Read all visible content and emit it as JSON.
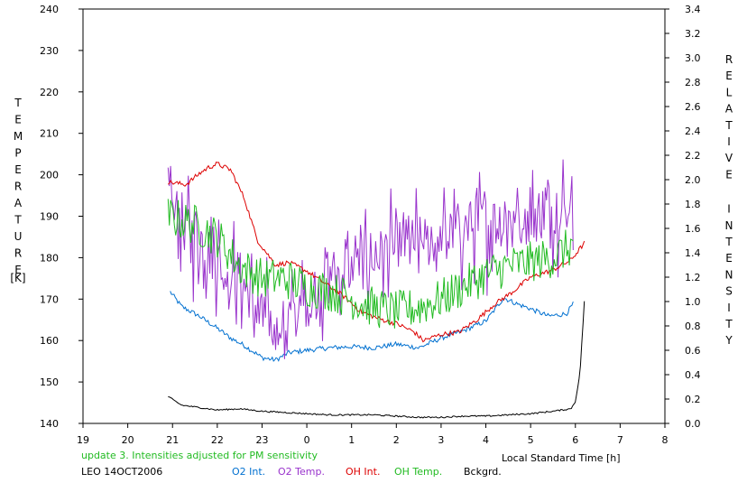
{
  "chart_data": {
    "type": "line",
    "left_axis": {
      "title": "TEMPERATURE",
      "unit": "[K]",
      "ticks": [
        140,
        150,
        160,
        170,
        180,
        190,
        200,
        210,
        220,
        230,
        240
      ],
      "range": [
        140,
        240
      ]
    },
    "right_axis": {
      "title": "RELATIVE INTENSITY",
      "ticks": [
        "0.0",
        "0.2",
        "0.4",
        "0.6",
        "0.8",
        "1.0",
        "1.2",
        "1.4",
        "1.6",
        "1.8",
        "2.0",
        "2.2",
        "2.4",
        "2.6",
        "2.8",
        "3.0",
        "3.2",
        "3.4"
      ],
      "range": [
        0,
        3.4
      ]
    },
    "x_axis": {
      "label": "Local Standard Time [h]",
      "ticks": [
        "19",
        "20",
        "21",
        "22",
        "23",
        "0",
        "1",
        "2",
        "3",
        "4",
        "5",
        "6",
        "7",
        "8"
      ],
      "range_hours": [
        19,
        32
      ]
    },
    "note": "update 3. Intensities adjusted for PM sensitivity",
    "station": "LEO 14OCT2006",
    "series": [
      {
        "name": "O2 Int.",
        "axis": "right",
        "color": "#0070d0",
        "noise": 0.02,
        "points": [
          [
            20.95,
            1.08
          ],
          [
            21.2,
            0.96
          ],
          [
            21.6,
            0.88
          ],
          [
            22.0,
            0.78
          ],
          [
            22.3,
            0.7
          ],
          [
            22.6,
            0.64
          ],
          [
            23.0,
            0.54
          ],
          [
            23.3,
            0.52
          ],
          [
            23.6,
            0.58
          ],
          [
            24.0,
            0.6
          ],
          [
            24.5,
            0.62
          ],
          [
            25.0,
            0.63
          ],
          [
            25.5,
            0.62
          ],
          [
            26.0,
            0.65
          ],
          [
            26.5,
            0.62
          ],
          [
            27.0,
            0.7
          ],
          [
            27.5,
            0.76
          ],
          [
            28.0,
            0.84
          ],
          [
            28.4,
            1.03
          ],
          [
            28.7,
            0.98
          ],
          [
            29.0,
            0.94
          ],
          [
            29.4,
            0.88
          ],
          [
            29.8,
            0.9
          ],
          [
            29.95,
            0.98
          ]
        ]
      },
      {
        "name": "O2 Temp.",
        "axis": "left",
        "color": "#9933cc",
        "noise": 7,
        "points": [
          [
            20.9,
            193
          ],
          [
            21.5,
            185
          ],
          [
            22.0,
            180
          ],
          [
            22.5,
            175
          ],
          [
            23.0,
            165
          ],
          [
            23.5,
            163
          ],
          [
            24.0,
            170
          ],
          [
            24.5,
            175
          ],
          [
            25.0,
            178
          ],
          [
            25.5,
            180
          ],
          [
            26.0,
            182
          ],
          [
            26.5,
            183
          ],
          [
            27.0,
            185
          ],
          [
            27.5,
            187
          ],
          [
            28.0,
            188
          ],
          [
            28.5,
            190
          ],
          [
            29.0,
            190
          ],
          [
            29.5,
            192
          ],
          [
            29.95,
            194
          ]
        ]
      },
      {
        "name": "OH Int.",
        "axis": "right",
        "color": "#dd0000",
        "noise": 0.02,
        "points": [
          [
            20.9,
            1.98
          ],
          [
            21.3,
            1.96
          ],
          [
            21.6,
            2.05
          ],
          [
            21.8,
            2.1
          ],
          [
            22.0,
            2.13
          ],
          [
            22.3,
            2.08
          ],
          [
            22.6,
            1.85
          ],
          [
            22.9,
            1.5
          ],
          [
            23.3,
            1.3
          ],
          [
            23.6,
            1.32
          ],
          [
            24.0,
            1.25
          ],
          [
            24.4,
            1.15
          ],
          [
            24.8,
            1.05
          ],
          [
            25.2,
            0.92
          ],
          [
            25.6,
            0.86
          ],
          [
            26.0,
            0.82
          ],
          [
            26.4,
            0.75
          ],
          [
            26.6,
            0.68
          ],
          [
            27.0,
            0.73
          ],
          [
            27.4,
            0.75
          ],
          [
            27.8,
            0.85
          ],
          [
            28.2,
            0.98
          ],
          [
            28.6,
            1.08
          ],
          [
            29.0,
            1.2
          ],
          [
            29.5,
            1.26
          ],
          [
            29.9,
            1.34
          ],
          [
            30.2,
            1.48
          ]
        ]
      },
      {
        "name": "OH Temp.",
        "axis": "left",
        "color": "#22bb22",
        "noise": 5,
        "points": [
          [
            20.9,
            190
          ],
          [
            21.5,
            188
          ],
          [
            22.0,
            185
          ],
          [
            22.5,
            178
          ],
          [
            23.0,
            175
          ],
          [
            23.5,
            175
          ],
          [
            24.0,
            173
          ],
          [
            24.5,
            172
          ],
          [
            25.0,
            170
          ],
          [
            25.5,
            168
          ],
          [
            26.0,
            167
          ],
          [
            26.5,
            168
          ],
          [
            27.0,
            170
          ],
          [
            27.5,
            173
          ],
          [
            28.0,
            176
          ],
          [
            28.5,
            178
          ],
          [
            29.0,
            179
          ],
          [
            29.5,
            180
          ],
          [
            29.95,
            183
          ]
        ]
      },
      {
        "name": "Bckgrd.",
        "axis": "right",
        "color": "#000000",
        "noise": 0.006,
        "points": [
          [
            20.9,
            0.22
          ],
          [
            21.2,
            0.15
          ],
          [
            21.6,
            0.13
          ],
          [
            22.0,
            0.11
          ],
          [
            22.5,
            0.12
          ],
          [
            23.0,
            0.1
          ],
          [
            23.5,
            0.09
          ],
          [
            24.0,
            0.08
          ],
          [
            24.5,
            0.07
          ],
          [
            25.0,
            0.07
          ],
          [
            25.5,
            0.07
          ],
          [
            26.0,
            0.06
          ],
          [
            26.5,
            0.05
          ],
          [
            27.0,
            0.05
          ],
          [
            27.5,
            0.06
          ],
          [
            28.0,
            0.06
          ],
          [
            28.5,
            0.07
          ],
          [
            29.0,
            0.08
          ],
          [
            29.5,
            0.1
          ],
          [
            29.9,
            0.12
          ],
          [
            30.0,
            0.18
          ],
          [
            30.1,
            0.4
          ],
          [
            30.2,
            1.0
          ]
        ]
      }
    ]
  }
}
